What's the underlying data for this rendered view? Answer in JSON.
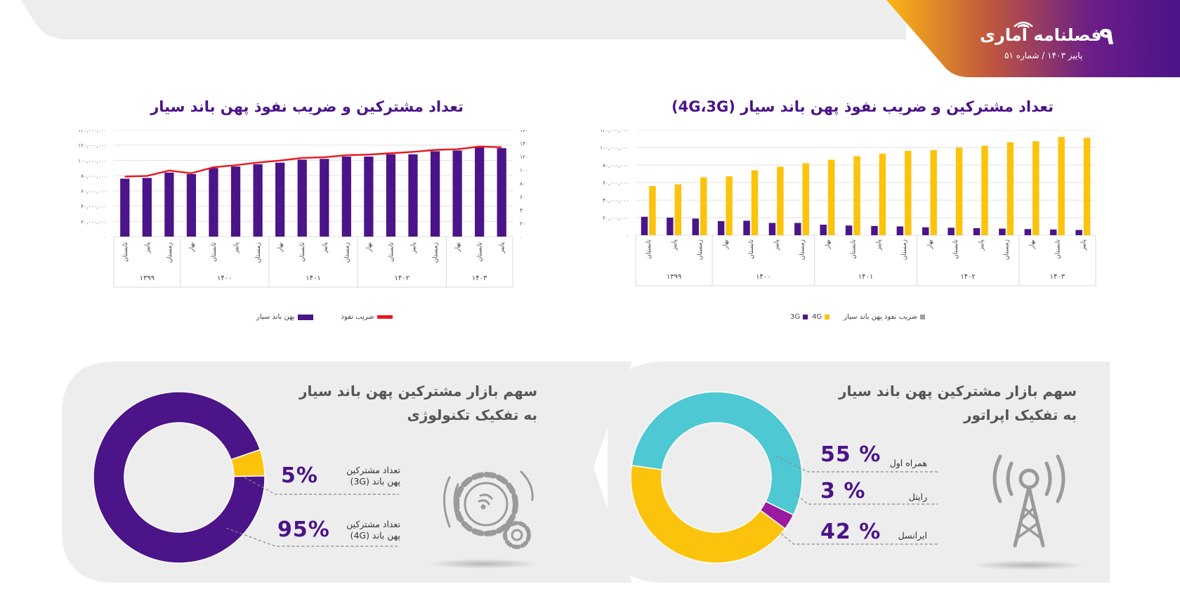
{
  "header": {
    "page_number": "۹",
    "brand": "فصلنامه آماری",
    "issue": "پاییز ۱۴۰۳ / شماره ۵۱"
  },
  "colors": {
    "purple": "#4b1488",
    "yellow": "#fcc30c",
    "red": "#e8171f",
    "teal": "#4ec8d2",
    "magenta": "#9b1aa0",
    "grey": "#9e9e9e"
  },
  "left_chart": {
    "title": "تعداد مشترکین و ضریب نفوذ پهن باند سیار",
    "legend": {
      "bars": "پهن باند سیار",
      "line": "ضریب نفوذ"
    }
  },
  "right_chart": {
    "title": "تعداد مشترکین و ضریب نفوذ پهن باند سیار (4G،3G)",
    "legend": {
      "g3": "3G",
      "g4": "4G",
      "pen": "ضریب نفوذ پهن باند سیار"
    }
  },
  "tech_panel": {
    "title_line1": "سهم بازار مشترکین پهن باند سیار",
    "title_line2": "به تفکیک تکنولوژی",
    "items": [
      {
        "pct": "5%",
        "label_line1": "تعداد مشترکین",
        "label_line2": "پهن باند (3G)"
      },
      {
        "pct": "95%",
        "label_line1": "تعداد مشترکین",
        "label_line2": "پهن باند (4G)"
      }
    ],
    "icon": "gears-icon"
  },
  "operator_panel": {
    "title_line1": "سهم بازار مشترکین پهن باند سیار",
    "title_line2": "به تفکیک اپراتور",
    "items": [
      {
        "pct": "55 %",
        "label": "همراه اول"
      },
      {
        "pct": "3 %",
        "label": "رایتل"
      },
      {
        "pct": "42 %",
        "label": "ایرانسل"
      }
    ],
    "icon": "antenna-tower-icon"
  },
  "chart_data": [
    {
      "type": "bar",
      "title": "تعداد مشترکین و ضریب نفوذ پهن باند سیار",
      "categories": [
        "تابستان",
        "پاییز",
        "زمستان",
        "بهار",
        "تابستان",
        "پاییز",
        "زمستان",
        "بهار",
        "تابستان",
        "پاییز",
        "زمستان",
        "بهار",
        "تابستان",
        "پاییز",
        "زمستان",
        "بهار",
        "تابستان",
        "پاییز"
      ],
      "year_groups": [
        {
          "label": "۱۳۹۹",
          "count": 3
        },
        {
          "label": "۱۴۰۰",
          "count": 4
        },
        {
          "label": "۱۴۰۱",
          "count": 4
        },
        {
          "label": "۱۴۰۲",
          "count": 4
        },
        {
          "label": "۱۴۰۳",
          "count": 3
        }
      ],
      "series": [
        {
          "name": "پهن باند سیار",
          "type": "bar",
          "axis": "left",
          "values": [
            76000000,
            77000000,
            84000000,
            82000000,
            90000000,
            92000000,
            95000000,
            97000000,
            101000000,
            102000000,
            105000000,
            105000000,
            108000000,
            108000000,
            112000000,
            113000000,
            117000000,
            116000000
          ]
        },
        {
          "name": "ضریب نفوذ",
          "type": "line",
          "axis": "right",
          "values": [
            90,
            91,
            99,
            95,
            104,
            107,
            111,
            114,
            118,
            119,
            122,
            123,
            125,
            127,
            130,
            131,
            135,
            134
          ]
        }
      ],
      "y_left": {
        "ylim": [
          0,
          140000000
        ],
        "ticks": [
          "۰",
          "۲۰,۰۰۰,۰۰۰",
          "۴۰,۰۰۰,۰۰۰",
          "۶۰,۰۰۰,۰۰۰",
          "۸۰,۰۰۰,۰۰۰",
          "۱۰۰,۰۰۰,۰۰۰",
          "۱۲۰,۰۰۰,۰۰۰",
          "۱۴۰,۰۰۰,۰۰۰"
        ]
      },
      "y_right": {
        "ylim": [
          0,
          160
        ],
        "ticks": [
          "۰",
          "۲۰",
          "۴۰",
          "۶۰",
          "۸۰",
          "۱۰۰",
          "۱۲۰",
          "۱۴۰",
          "۱۶۰"
        ]
      },
      "grid": true,
      "legend_position": "bottom"
    },
    {
      "type": "bar",
      "title": "تعداد مشترکین و ضریب نفوذ پهن باند سیار (4G،3G)",
      "categories": [
        "تابستان",
        "پاییز",
        "زمستان",
        "بهار",
        "تابستان",
        "پاییز",
        "زمستان",
        "بهار",
        "تابستان",
        "پاییز",
        "زمستان",
        "بهار",
        "تابستان",
        "پاییز",
        "زمستان",
        "بهار",
        "تابستان",
        "پاییز"
      ],
      "year_groups": [
        {
          "label": "۱۳۹۹",
          "count": 3
        },
        {
          "label": "۱۴۰۰",
          "count": 4
        },
        {
          "label": "۱۴۰۱",
          "count": 4
        },
        {
          "label": "۱۴۰۲",
          "count": 4
        },
        {
          "label": "۱۴۰۳",
          "count": 3
        }
      ],
      "series": [
        {
          "name": "3G",
          "values": [
            21000000,
            20000000,
            19000000,
            16000000,
            16500000,
            14000000,
            14000000,
            12000000,
            11000000,
            10500000,
            10000000,
            9000000,
            8500000,
            8000000,
            7500000,
            7000000,
            6500000,
            6000000
          ]
        },
        {
          "name": "4G",
          "values": [
            56000000,
            58000000,
            66000000,
            67000000,
            74000000,
            78000000,
            82000000,
            86000000,
            90000000,
            93000000,
            96000000,
            97000000,
            100000000,
            102000000,
            106000000,
            107000000,
            112000000,
            111000000
          ]
        }
      ],
      "y": {
        "ylim": [
          0,
          120000000
        ],
        "ticks": [
          "۰",
          "۲۰,۰۰۰,۰۰۰",
          "۴۰,۰۰۰,۰۰۰",
          "۶۰,۰۰۰,۰۰۰",
          "۸۰,۰۰۰,۰۰۰",
          "۱۰۰,۰۰۰,۰۰۰",
          "۱۲۰,۰۰۰,۰۰۰"
        ]
      },
      "grid": true,
      "legend_position": "bottom"
    },
    {
      "type": "pie",
      "title": "سهم بازار مشترکین پهن باند سیار به تفکیک تکنولوژی",
      "slices": [
        {
          "name": "پهن باند (3G)",
          "value": 5
        },
        {
          "name": "پهن باند (4G)",
          "value": 95
        }
      ]
    },
    {
      "type": "pie",
      "title": "سهم بازار مشترکین پهن باند سیار به تفکیک اپراتور",
      "slices": [
        {
          "name": "همراه اول",
          "value": 55
        },
        {
          "name": "رایتل",
          "value": 3
        },
        {
          "name": "ایرانسل",
          "value": 42
        }
      ]
    }
  ]
}
